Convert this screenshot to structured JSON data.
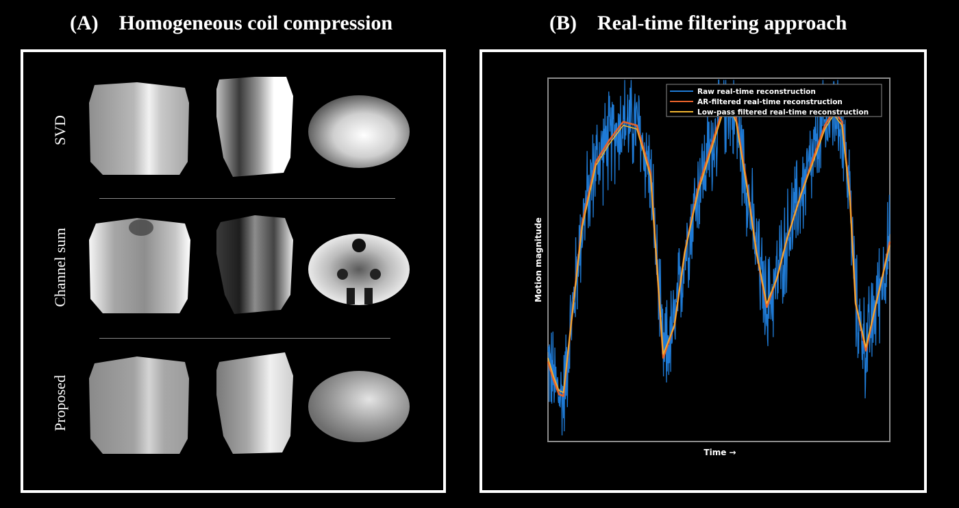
{
  "panel_a": {
    "letter": "(A)",
    "title": "Homogeneous coil compression",
    "rows": [
      {
        "label": "SVD"
      },
      {
        "label": "Channel sum"
      },
      {
        "label": "Proposed"
      }
    ],
    "image_shapes": [
      "square-slice",
      "tall-slice",
      "oval-slice"
    ]
  },
  "panel_b": {
    "letter": "(B)",
    "title": "Real-time filtering approach",
    "chart_data": {
      "type": "line",
      "title": "",
      "xlabel": "Time →",
      "ylabel": "Motion magnitude",
      "x_ticks_shown": false,
      "y_ticks_shown": false,
      "legend_position": "top-right",
      "grid": false,
      "x_range": [
        0,
        100
      ],
      "y_range": [
        0,
        100
      ],
      "series": [
        {
          "name": "Raw real-time reconstruction",
          "color": "#1f7bd6",
          "description_values": "noisy version of the AR-filtered signal",
          "noise_amplitude": 12
        },
        {
          "name": "AR-filtered real-time reconstruction",
          "color": "#e8622a",
          "x": [
            0,
            1.6,
            3.2,
            4.5,
            6.5,
            10,
            14,
            18,
            22,
            26,
            30,
            33.7,
            37,
            40,
            44,
            48,
            51,
            53,
            55,
            58,
            61,
            64,
            67,
            70,
            74,
            78,
            81,
            83.6,
            86,
            88.3,
            90,
            93,
            96,
            98,
            100
          ],
          "values": [
            22,
            17,
            13,
            12.5,
            30,
            60,
            77,
            83,
            88,
            87,
            74,
            23,
            32,
            52,
            70,
            82,
            91,
            93,
            89,
            72,
            52,
            37,
            45,
            56,
            68,
            79,
            87,
            91,
            88,
            68,
            38,
            25,
            38,
            46,
            55
          ]
        },
        {
          "name": "Low-pass filtered real-time reconstruction",
          "color": "#f2b631",
          "x": [
            0,
            1.6,
            3.2,
            4.5,
            6.5,
            10,
            14,
            18,
            22,
            26,
            30,
            33.7,
            37,
            40,
            44,
            48,
            51,
            53,
            55,
            58,
            61,
            64,
            67,
            70,
            74,
            78,
            81,
            83.6,
            86,
            88.3,
            90,
            93,
            96,
            98,
            100
          ],
          "values": [
            23,
            18,
            14,
            13.5,
            30,
            59,
            76,
            82,
            87,
            86,
            73,
            24,
            32,
            52,
            69,
            81,
            90,
            92,
            88,
            71,
            52,
            38,
            45,
            56,
            68,
            78,
            86,
            90,
            87,
            67,
            38,
            26,
            38,
            46,
            54
          ]
        }
      ]
    }
  }
}
